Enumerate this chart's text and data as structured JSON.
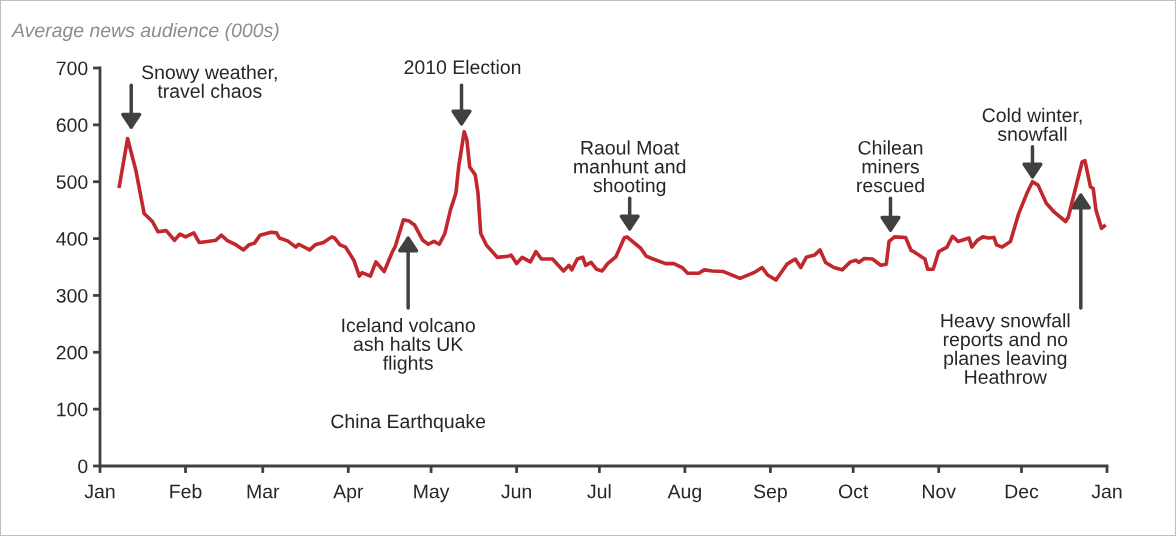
{
  "chart_data": {
    "type": "line",
    "title": "Average news audience (000s)",
    "x": [
      "2010-01-08",
      "2010-01-11",
      "2010-01-14",
      "2010-01-17",
      "2010-01-20",
      "2010-01-22",
      "2010-01-25",
      "2010-01-28",
      "2010-01-30",
      "2010-02-01",
      "2010-02-04",
      "2010-02-06",
      "2010-02-09",
      "2010-02-12",
      "2010-02-14",
      "2010-02-16",
      "2010-02-19",
      "2010-02-22",
      "2010-02-24",
      "2010-02-26",
      "2010-02-28",
      "2010-03-04",
      "2010-03-06",
      "2010-03-07",
      "2010-03-10",
      "2010-03-13",
      "2010-03-14",
      "2010-03-18",
      "2010-03-20",
      "2010-03-23",
      "2010-03-26",
      "2010-03-27",
      "2010-03-29",
      "2010-03-31",
      "2010-04-03",
      "2010-04-05",
      "2010-04-06",
      "2010-04-09",
      "2010-04-11",
      "2010-04-14",
      "2010-04-17",
      "2010-04-18",
      "2010-04-21",
      "2010-04-23",
      "2010-04-25",
      "2010-04-28",
      "2010-04-30",
      "2010-05-02",
      "2010-05-04",
      "2010-05-06",
      "2010-05-08",
      "2010-05-10",
      "2010-05-11",
      "2010-05-13",
      "2010-05-14",
      "2010-05-15",
      "2010-05-17",
      "2010-05-18",
      "2010-05-19",
      "2010-05-21",
      "2010-05-25",
      "2010-05-29",
      "2010-05-30",
      "2010-06-01",
      "2010-06-03",
      "2010-06-06",
      "2010-06-08",
      "2010-06-10",
      "2010-06-14",
      "2010-06-18",
      "2010-06-20",
      "2010-06-21",
      "2010-06-23",
      "2010-06-25",
      "2010-06-26",
      "2010-06-28",
      "2010-06-30",
      "2010-07-02",
      "2010-07-04",
      "2010-07-07",
      "2010-07-10",
      "2010-07-11",
      "2010-07-16",
      "2010-07-18",
      "2010-07-20",
      "2010-07-25",
      "2010-07-28",
      "2010-07-31",
      "2010-08-02",
      "2010-08-06",
      "2010-08-08",
      "2010-08-11",
      "2010-08-15",
      "2010-08-21",
      "2010-08-26",
      "2010-08-29",
      "2010-08-31",
      "2010-09-03",
      "2010-09-07",
      "2010-09-10",
      "2010-09-12",
      "2010-09-14",
      "2010-09-17",
      "2010-09-19",
      "2010-09-21",
      "2010-09-24",
      "2010-09-27",
      "2010-09-30",
      "2010-10-02",
      "2010-10-03",
      "2010-10-05",
      "2010-10-08",
      "2010-10-11",
      "2010-10-13",
      "2010-10-14",
      "2010-10-16",
      "2010-10-20",
      "2010-10-22",
      "2010-10-23",
      "2010-10-26",
      "2010-10-27",
      "2010-10-28",
      "2010-10-30",
      "2010-11-01",
      "2010-11-04",
      "2010-11-06",
      "2010-11-08",
      "2010-11-12",
      "2010-11-13",
      "2010-11-15",
      "2010-11-17",
      "2010-11-19",
      "2010-11-21",
      "2010-11-22",
      "2010-11-24",
      "2010-11-27",
      "2010-11-30",
      "2010-12-03",
      "2010-12-05",
      "2010-12-07",
      "2010-12-10",
      "2010-12-13",
      "2010-12-17",
      "2010-12-18",
      "2010-12-20",
      "2010-12-23",
      "2010-12-24",
      "2010-12-26",
      "2010-12-27",
      "2010-12-28",
      "2010-12-30",
      "2010-12-31"
    ],
    "series": [
      {
        "color": "#c1272d",
        "values": [
          492,
          576,
          520,
          444,
          430,
          412,
          414,
          397,
          408,
          403,
          410,
          393,
          395,
          397,
          406,
          397,
          390,
          380,
          389,
          392,
          406,
          411,
          410,
          401,
          396,
          385,
          390,
          380,
          389,
          393,
          403,
          401,
          389,
          385,
          362,
          334,
          340,
          334,
          359,
          342,
          377,
          386,
          433,
          431,
          424,
          397,
          390,
          395,
          390,
          409,
          450,
          480,
          526,
          588,
          573,
          526,
          512,
          480,
          409,
          389,
          367,
          369,
          371,
          356,
          367,
          359,
          377,
          364,
          364,
          343,
          353,
          345,
          364,
          367,
          353,
          358,
          346,
          343,
          356,
          368,
          401,
          403,
          383,
          369,
          365,
          356,
          356,
          349,
          339,
          339,
          345,
          343,
          342,
          330,
          340,
          349,
          336,
          327,
          355,
          364,
          349,
          367,
          371,
          380,
          358,
          349,
          345,
          359,
          362,
          358,
          365,
          364,
          353,
          355,
          395,
          403,
          402,
          379,
          377,
          367,
          364,
          346,
          346,
          377,
          385,
          404,
          395,
          401,
          385,
          397,
          403,
          401,
          402,
          389,
          385,
          395,
          444,
          480,
          500,
          494,
          462,
          446,
          430,
          438,
          477,
          535,
          537,
          491,
          488,
          450,
          418,
          422
        ]
      }
    ],
    "xlim": [
      "2010-01-01",
      "2011-01-01"
    ],
    "xticks": [
      {
        "value": "2010-01-01",
        "label": "Jan"
      },
      {
        "value": "2010-02-01",
        "label": "Feb"
      },
      {
        "value": "2010-03-01",
        "label": "Mar"
      },
      {
        "value": "2010-04-01",
        "label": "Apr"
      },
      {
        "value": "2010-05-01",
        "label": "May"
      },
      {
        "value": "2010-06-01",
        "label": "Jun"
      },
      {
        "value": "2010-07-01",
        "label": "Jul"
      },
      {
        "value": "2010-08-01",
        "label": "Aug"
      },
      {
        "value": "2010-09-01",
        "label": "Sep"
      },
      {
        "value": "2010-10-01",
        "label": "Oct"
      },
      {
        "value": "2010-11-01",
        "label": "Nov"
      },
      {
        "value": "2010-12-01",
        "label": "Dec"
      },
      {
        "value": "2011-01-01",
        "label": "Jan"
      }
    ],
    "ylim": [
      0,
      700
    ],
    "yticks": [
      0,
      100,
      200,
      300,
      400,
      500,
      600,
      700
    ],
    "grid": false,
    "legend": false,
    "marker": "none",
    "line_style": "solid",
    "annotations": [
      "Snowy weather,\ntravel chaos",
      "2010 Election",
      "Raoul Moat\nmanhunt and\nshooting",
      "Chilean\nminers\nrescued",
      "Cold winter,\nsnowfall",
      "Iceland volcano\nash halts UK\nflights",
      "China Earthquake",
      "Heavy snowfall\nreports and no\nplanes leaving\nHeathrow"
    ]
  }
}
